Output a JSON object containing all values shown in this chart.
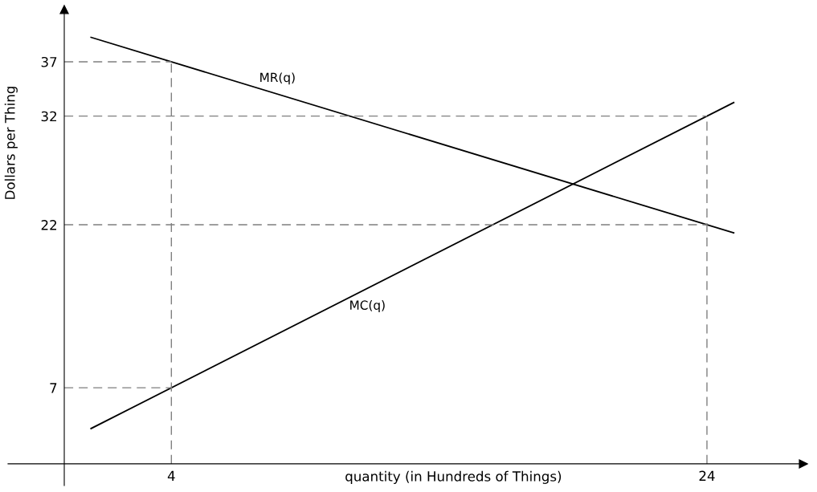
{
  "chart_data": {
    "type": "line",
    "xlabel": "quantity (in Hundreds of Things)",
    "ylabel": "Dollars per Thing",
    "series": [
      {
        "name": "MR(q)",
        "color": "#000000",
        "values": [
          39.25,
          21.25
        ]
      },
      {
        "name": "MC(q)",
        "color": "#000000",
        "values": [
          3.25,
          33.25
        ]
      }
    ],
    "x": [
      1,
      25
    ],
    "xlim": [
      -2.1,
      27.6
    ],
    "ylim": [
      -2,
      41.8
    ],
    "xticks": [
      4,
      24
    ],
    "yticks": [
      7,
      22,
      32,
      37
    ],
    "ref_lines": [
      {
        "axis": "x",
        "value": 4,
        "color": "#7f7f7f",
        "line_style": "dashed"
      },
      {
        "axis": "x",
        "value": 24,
        "color": "#7f7f7f",
        "line_style": "dashed"
      },
      {
        "axis": "y",
        "value": 37,
        "color": "#7f7f7f",
        "line_style": "dashed"
      },
      {
        "axis": "y",
        "value": 32,
        "color": "#7f7f7f",
        "line_style": "dashed"
      },
      {
        "axis": "y",
        "value": 22,
        "color": "#7f7f7f",
        "line_style": "dashed"
      },
      {
        "axis": "y",
        "value": 7,
        "color": "#7f7f7f",
        "line_style": "dashed"
      }
    ],
    "grid": false,
    "legend": false,
    "marker": "none",
    "line_style": "solid"
  }
}
